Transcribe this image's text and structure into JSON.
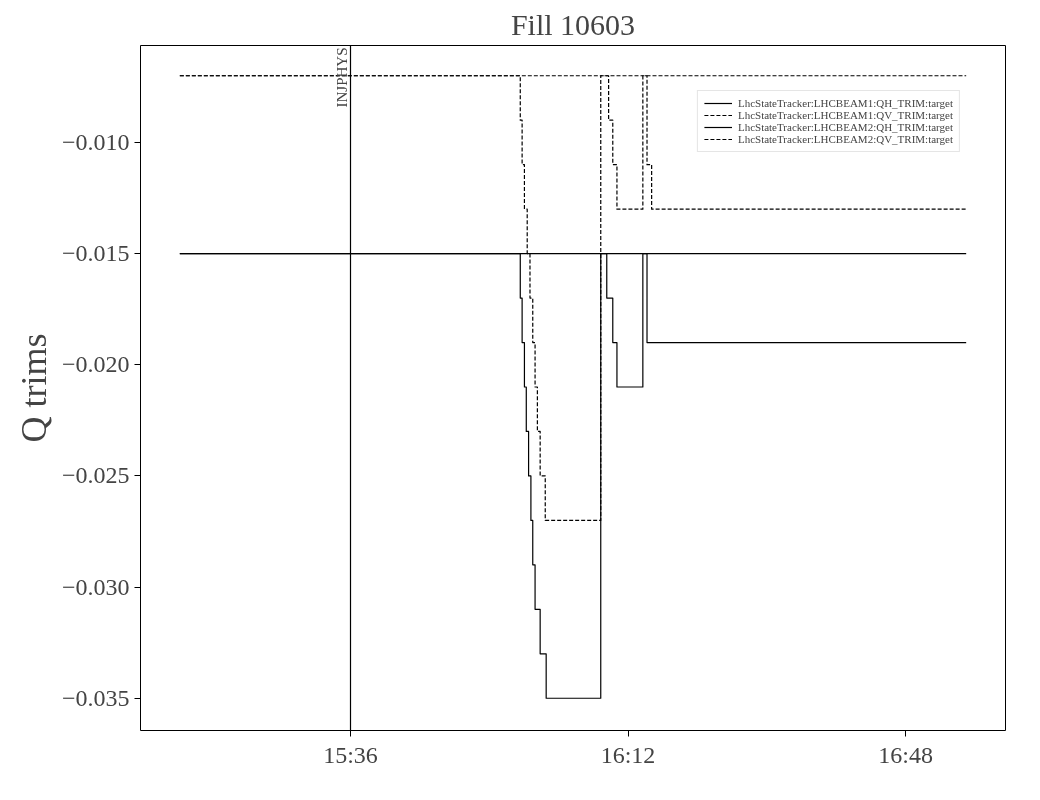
{
  "chart_data": {
    "type": "step",
    "title": "Fill 10603",
    "ylabel": "Q trims",
    "xlim": [
      15.146,
      17.016
    ],
    "xticks": [
      {
        "value": 15.6,
        "label": "15:36"
      },
      {
        "value": 16.2,
        "label": "16:12"
      },
      {
        "value": 16.8,
        "label": "16:48"
      }
    ],
    "ylim": [
      -0.03645,
      -0.00564
    ],
    "yticks": [
      {
        "value": -0.01,
        "label": "−0.010"
      },
      {
        "value": -0.015,
        "label": "−0.015"
      },
      {
        "value": -0.02,
        "label": "−0.020"
      },
      {
        "value": -0.025,
        "label": "−0.025"
      },
      {
        "value": -0.03,
        "label": "−0.030"
      },
      {
        "value": -0.035,
        "label": "−0.035"
      }
    ],
    "grid": false,
    "legend": "top right",
    "marker": "none",
    "ref_lines": [
      {
        "axis": "x",
        "value": 15.6,
        "label": "INJPHYS",
        "color": "#000000"
      }
    ],
    "series": [
      {
        "name": "LhcStateTracker:LHCBEAM1:QH_TRIM:target",
        "color": "#000000",
        "line_style": "solid",
        "x": [
          15.231,
          15.967,
          15.971,
          15.976,
          15.98,
          15.985,
          15.99,
          15.994,
          15.999,
          16.01,
          16.023,
          16.141,
          16.931
        ],
        "values": [
          -0.015,
          -0.017,
          -0.019,
          -0.021,
          -0.023,
          -0.025,
          -0.027,
          -0.029,
          -0.031,
          -0.033,
          -0.035,
          -0.015,
          -0.015
        ]
      },
      {
        "name": "LhcStateTracker:LHCBEAM1:QV_TRIM:target",
        "color": "#000000",
        "line_style": "dashed",
        "x": [
          15.231,
          15.967,
          15.971,
          15.976,
          15.982,
          15.988,
          15.994,
          15.999,
          16.004,
          16.01,
          16.021,
          16.141,
          16.931
        ],
        "values": [
          -0.007,
          -0.009,
          -0.011,
          -0.013,
          -0.015,
          -0.017,
          -0.019,
          -0.021,
          -0.023,
          -0.025,
          -0.027,
          -0.007,
          -0.007
        ]
      },
      {
        "name": "LhcStateTracker:LHCBEAM2:QH_TRIM:target",
        "color": "#000000",
        "line_style": "solid",
        "x": [
          15.231,
          16.154,
          16.167,
          16.176,
          16.232,
          16.241,
          16.931
        ],
        "values": [
          -0.015,
          -0.017,
          -0.019,
          -0.021,
          -0.015,
          -0.019,
          -0.019
        ]
      },
      {
        "name": "LhcStateTracker:LHCBEAM2:QV_TRIM:target",
        "color": "#000000",
        "line_style": "dashed",
        "x": [
          15.231,
          16.158,
          16.167,
          16.176,
          16.232,
          16.241,
          16.251,
          16.931
        ],
        "values": [
          -0.007,
          -0.009,
          -0.011,
          -0.013,
          -0.007,
          -0.011,
          -0.013,
          -0.013
        ]
      }
    ]
  }
}
